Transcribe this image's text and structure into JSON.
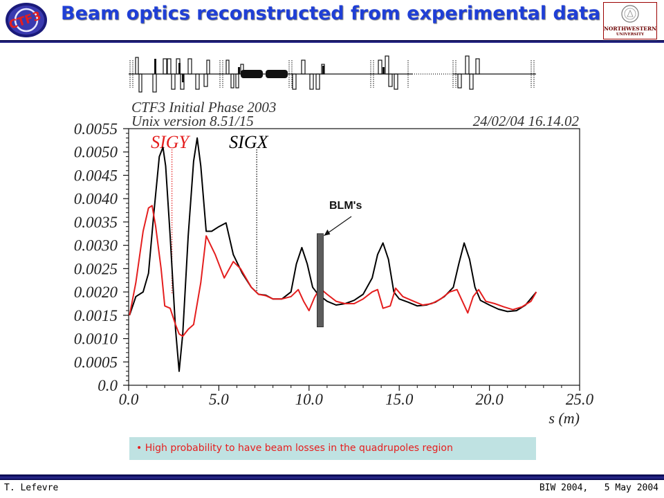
{
  "slide": {
    "title": "Beam optics reconstructed from experimental data",
    "bullet": "• High probability to have beam losses in the quadrupoles region",
    "footer_left": "T. Lefevre",
    "footer_right": "BIW 2004,   5 May 2004"
  },
  "logos": {
    "left_text": "CTF3",
    "right_top": "NORTHWESTERN",
    "right_bottom": "UNIVERSITY"
  },
  "colors": {
    "title": "#1f3fd6",
    "sigx": "#000000",
    "sigy": "#e41e1e",
    "bullet_bg": "#bfe2e2",
    "bullet_text": "#e61e1e",
    "rule": "#000040",
    "blm": "#5c5c5c"
  },
  "chart_data": {
    "type": "line",
    "header_line1": "CTF3 Initial Phase 2003",
    "header_line2": "Unix version 8.51/15",
    "timestamp": "24/02/04  16.14.02",
    "xlabel": "s (m)",
    "ylabel": "",
    "xlim": [
      0,
      25
    ],
    "ylim": [
      0,
      0.0055
    ],
    "x_ticks": [
      "0.0",
      "5.0",
      "10.0",
      "15.0",
      "20.0",
      "25.0"
    ],
    "y_ticks": [
      "0.0",
      "0.0005",
      "0.0010",
      "0.0015",
      "0.0020",
      "0.0025",
      "0.0030",
      "0.0035",
      "0.0040",
      "0.0045",
      "0.0050",
      "0.0055"
    ],
    "grid": false,
    "series": [
      {
        "name": "SIGX",
        "color": "#000000",
        "x": [
          0.05,
          0.4,
          0.8,
          1.1,
          1.4,
          1.7,
          1.9,
          2.05,
          2.3,
          2.6,
          2.8,
          3.0,
          3.3,
          3.6,
          3.8,
          4.0,
          4.3,
          4.6,
          5.0,
          5.4,
          5.8,
          6.3,
          6.8,
          7.2,
          7.6,
          8.0,
          8.5,
          9.0,
          9.3,
          9.6,
          9.9,
          10.2,
          10.5,
          11.0,
          11.5,
          12.0,
          12.5,
          13.0,
          13.5,
          13.8,
          14.1,
          14.4,
          14.7,
          15.0,
          15.5,
          16.0,
          16.5,
          17.0,
          17.5,
          18.0,
          18.3,
          18.6,
          18.9,
          19.2,
          19.5,
          20.0,
          20.5,
          21.0,
          21.5,
          22.0,
          22.6
        ],
        "y": [
          0.0015,
          0.0019,
          0.002,
          0.0024,
          0.0037,
          0.0049,
          0.0051,
          0.0047,
          0.0032,
          0.0012,
          0.0003,
          0.0011,
          0.0032,
          0.0048,
          0.0053,
          0.0047,
          0.0033,
          0.0033,
          0.0034,
          0.00348,
          0.0028,
          0.0024,
          0.0021,
          0.00195,
          0.00193,
          0.00185,
          0.00185,
          0.002,
          0.0026,
          0.00295,
          0.0026,
          0.0021,
          0.00195,
          0.0018,
          0.00172,
          0.00175,
          0.00182,
          0.00195,
          0.0023,
          0.0028,
          0.00305,
          0.0027,
          0.002,
          0.00185,
          0.00178,
          0.0017,
          0.00172,
          0.00178,
          0.0019,
          0.0021,
          0.0026,
          0.00305,
          0.0027,
          0.0021,
          0.00182,
          0.00172,
          0.00163,
          0.00158,
          0.0016,
          0.00172,
          0.002
        ]
      },
      {
        "name": "SIGY",
        "color": "#e41e1e",
        "x": [
          0.05,
          0.4,
          0.8,
          1.1,
          1.3,
          1.5,
          1.8,
          2.0,
          2.3,
          2.6,
          2.8,
          3.0,
          3.3,
          3.6,
          4.0,
          4.3,
          4.8,
          5.3,
          5.8,
          6.2,
          6.8,
          7.2,
          7.6,
          8.0,
          8.5,
          9.0,
          9.4,
          9.7,
          10.0,
          10.3,
          10.6,
          11.0,
          11.5,
          12.0,
          12.5,
          13.0,
          13.5,
          13.8,
          14.1,
          14.5,
          14.8,
          15.2,
          15.8,
          16.3,
          16.8,
          17.3,
          17.8,
          18.2,
          18.5,
          18.8,
          19.1,
          19.4,
          19.8,
          20.3,
          20.8,
          21.3,
          21.8,
          22.3,
          22.6
        ],
        "y": [
          0.0015,
          0.0022,
          0.0033,
          0.0038,
          0.00385,
          0.0034,
          0.0025,
          0.0017,
          0.00165,
          0.0013,
          0.0011,
          0.00105,
          0.0012,
          0.0013,
          0.0022,
          0.0032,
          0.0028,
          0.0023,
          0.00265,
          0.0025,
          0.0021,
          0.00195,
          0.00192,
          0.00185,
          0.00185,
          0.0019,
          0.00205,
          0.0018,
          0.0016,
          0.00188,
          0.00208,
          0.00195,
          0.0018,
          0.00175,
          0.00175,
          0.00185,
          0.002,
          0.00205,
          0.00165,
          0.0017,
          0.00208,
          0.0019,
          0.0018,
          0.00172,
          0.00175,
          0.00185,
          0.002,
          0.00205,
          0.0018,
          0.00155,
          0.0019,
          0.00205,
          0.0018,
          0.00175,
          0.00168,
          0.00162,
          0.00168,
          0.0018,
          0.002
        ]
      }
    ],
    "markers": [
      {
        "label": "SIGY",
        "x": 2.4,
        "color": "#e41e1e"
      },
      {
        "label": "SIGX",
        "x": 7.1,
        "color": "#000000"
      }
    ],
    "annotation": {
      "label": "BLM's",
      "x": 10.6,
      "y_low": 0.00125,
      "y_high": 0.00325
    }
  }
}
